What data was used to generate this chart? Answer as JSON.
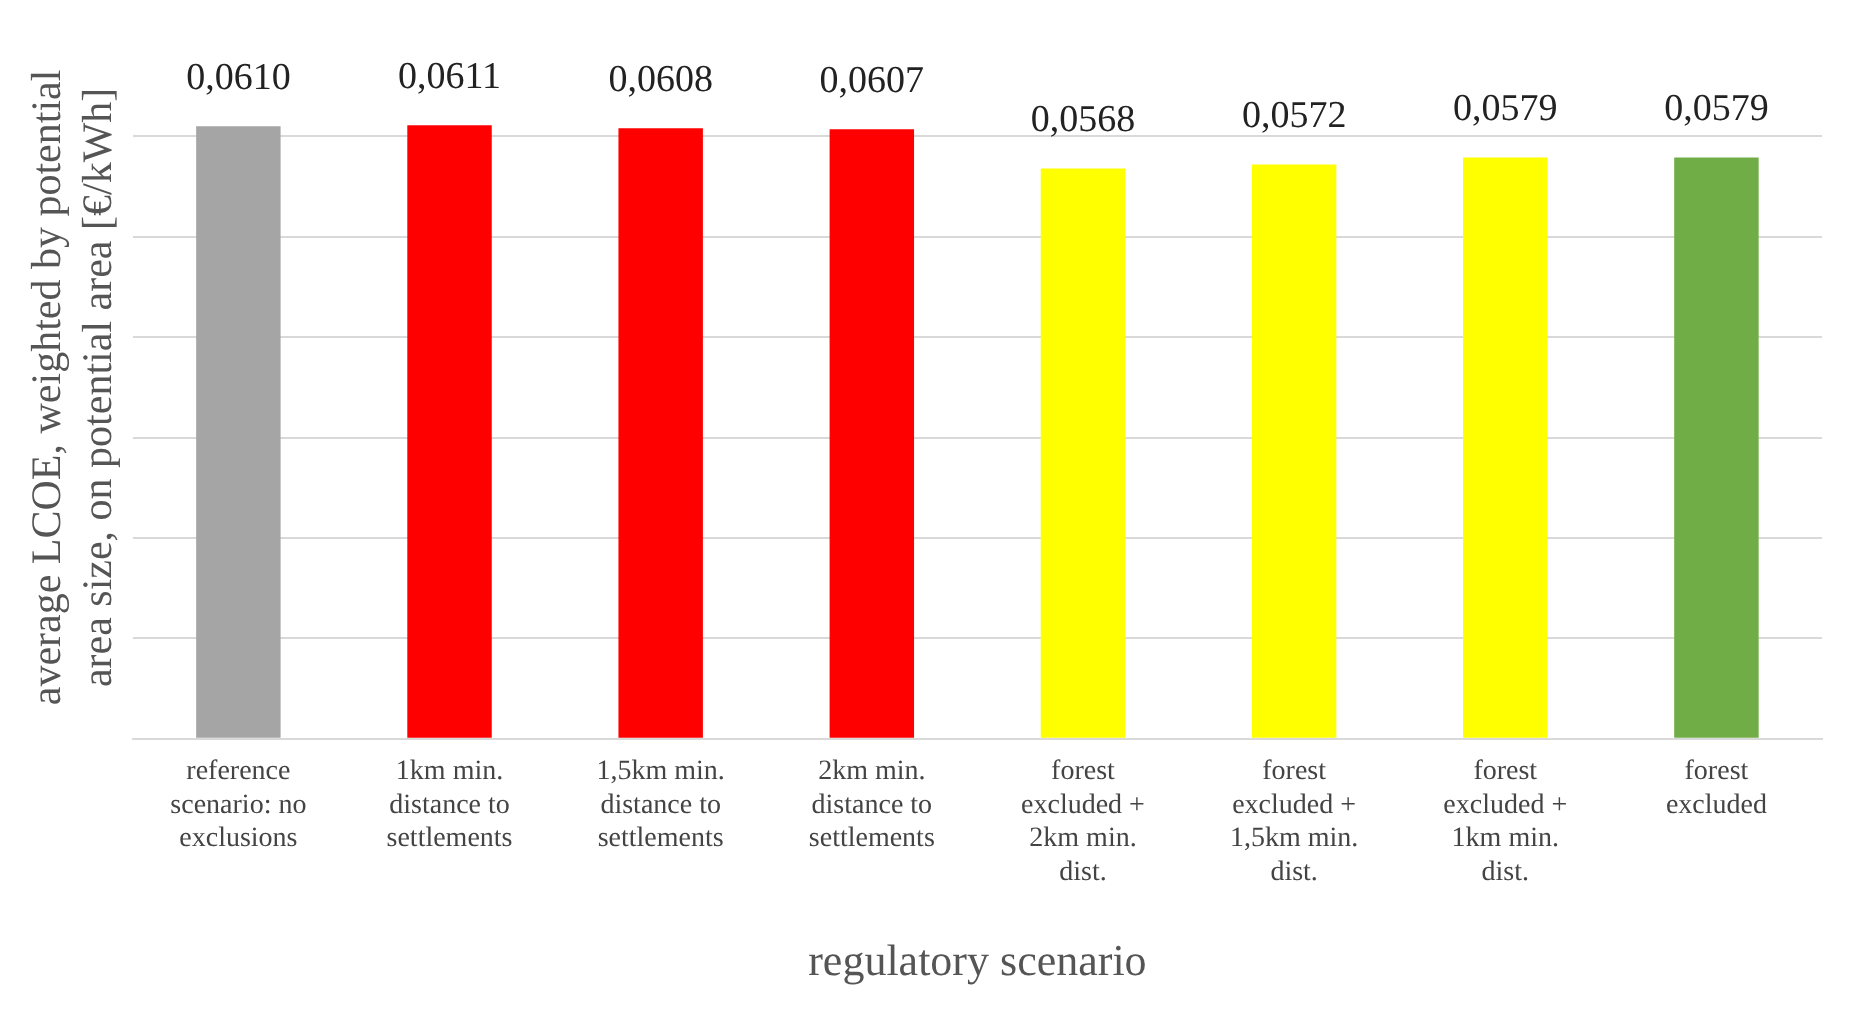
{
  "chart_data": {
    "type": "bar",
    "xlabel": "regulatory scenario",
    "ylabel": "average LCOE, weighted by potential area size, on potential area [€/kWh]",
    "categories": [
      "reference scenario: no exclusions",
      "1km min. distance to settlements",
      "1,5km min. distance to settlements",
      "2km min. distance to settlements",
      "forest excluded + 2km min. dist.",
      "forest excluded + 1,5km min. dist.",
      "forest excluded + 1km min. dist.",
      "forest excluded"
    ],
    "values": [
      0.061,
      0.0611,
      0.0608,
      0.0607,
      0.0568,
      0.0572,
      0.0579,
      0.0579
    ],
    "value_labels": [
      "0,0610",
      "0,0611",
      "0,0608",
      "0,0607",
      "0,0568",
      "0,0572",
      "0,0579",
      "0,0579"
    ],
    "colors": [
      "#a5a5a5",
      "#ff0000",
      "#ff0000",
      "#ff0000",
      "#ffff00",
      "#ffff00",
      "#ffff00",
      "#70ad47"
    ],
    "yticks": [
      {
        "value": 0,
        "label": null
      },
      {
        "value": 0.01,
        "label": null
      },
      {
        "value": 0.02,
        "label": null
      },
      {
        "value": 0.03,
        "label": null
      },
      {
        "value": 0.04,
        "label": null
      },
      {
        "value": 0.05,
        "label": null
      },
      {
        "value": 0.06,
        "label": null
      }
    ],
    "grid": "y",
    "legend": false,
    "tick_labels": "x"
  }
}
